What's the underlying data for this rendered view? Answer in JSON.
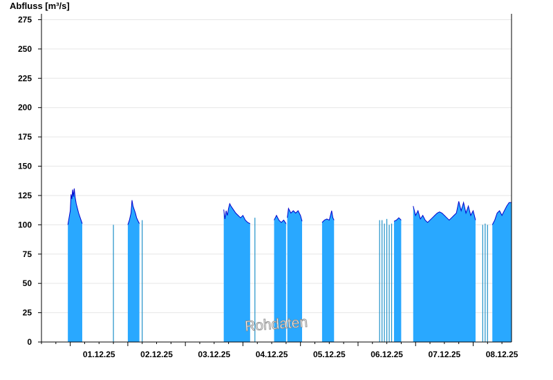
{
  "chart_data": {
    "type": "area",
    "ylabel": "Abfluss [m³/s]",
    "ylim": [
      0,
      280
    ],
    "yticks": [
      0,
      25,
      50,
      75,
      100,
      125,
      150,
      175,
      200,
      225,
      250,
      275
    ],
    "x_range": [
      "2025-11-30T12:00",
      "2025-12-08T16:00"
    ],
    "x_tick_labels": [
      "01.12.25",
      "02.12.25",
      "03.12.25",
      "04.12.25",
      "05.12.25",
      "06.12.25",
      "07.12.25",
      "08.12.25"
    ],
    "grid": true,
    "watermark": "Rohdaten",
    "colors": {
      "fill": "#29a8ff",
      "line": "#0000cc",
      "grid": "#e6e6e6"
    },
    "segments": [
      {
        "points": [
          [
            "2025-11-30T23:00",
            100
          ],
          [
            "2025-11-30T23:30",
            106
          ],
          [
            "2025-12-01T00:00",
            112
          ],
          [
            "2025-12-01T00:20",
            126
          ],
          [
            "2025-12-01T00:40",
            122
          ],
          [
            "2025-12-01T01:00",
            130
          ],
          [
            "2025-12-01T01:20",
            124
          ],
          [
            "2025-12-01T01:40",
            131
          ],
          [
            "2025-12-01T02:00",
            124
          ],
          [
            "2025-12-01T02:30",
            118
          ],
          [
            "2025-12-01T03:00",
            114
          ],
          [
            "2025-12-01T03:30",
            110
          ],
          [
            "2025-12-01T04:00",
            107
          ],
          [
            "2025-12-01T04:30",
            104
          ],
          [
            "2025-12-01T05:00",
            101
          ]
        ]
      },
      {
        "points": [
          [
            "2025-12-01T18:00",
            100
          ]
        ]
      },
      {
        "points": [
          [
            "2025-12-02T00:00",
            100
          ],
          [
            "2025-12-02T00:40",
            104
          ],
          [
            "2025-12-02T01:20",
            110
          ],
          [
            "2025-12-02T01:45",
            121
          ],
          [
            "2025-12-02T02:10",
            116
          ],
          [
            "2025-12-02T02:40",
            113
          ],
          [
            "2025-12-02T03:10",
            110
          ],
          [
            "2025-12-02T03:40",
            106
          ],
          [
            "2025-12-02T04:20",
            103
          ],
          [
            "2025-12-02T04:50",
            101
          ]
        ]
      },
      {
        "points": [
          [
            "2025-12-02T06:00",
            104
          ]
        ]
      },
      {
        "points": [
          [
            "2025-12-03T16:00",
            113
          ],
          [
            "2025-12-03T16:30",
            105
          ],
          [
            "2025-12-03T17:00",
            112
          ],
          [
            "2025-12-03T17:30",
            108
          ],
          [
            "2025-12-03T18:00",
            114
          ],
          [
            "2025-12-03T18:30",
            118
          ],
          [
            "2025-12-03T19:00",
            116
          ],
          [
            "2025-12-03T20:00",
            113
          ],
          [
            "2025-12-03T21:00",
            110
          ],
          [
            "2025-12-03T22:00",
            108
          ],
          [
            "2025-12-03T23:00",
            106
          ],
          [
            "2025-12-04T00:00",
            108
          ],
          [
            "2025-12-04T01:00",
            104
          ],
          [
            "2025-12-04T02:00",
            102
          ],
          [
            "2025-12-04T03:00",
            101
          ]
        ]
      },
      {
        "points": [
          [
            "2025-12-04T05:00",
            106
          ]
        ]
      },
      {
        "points": [
          [
            "2025-12-04T13:00",
            104
          ],
          [
            "2025-12-04T14:00",
            108
          ],
          [
            "2025-12-04T15:00",
            104
          ],
          [
            "2025-12-04T16:00",
            102
          ],
          [
            "2025-12-04T17:00",
            104
          ],
          [
            "2025-12-04T18:00",
            101
          ]
        ]
      },
      {
        "points": [
          [
            "2025-12-04T18:30",
            106
          ],
          [
            "2025-12-04T19:00",
            114
          ],
          [
            "2025-12-04T20:00",
            110
          ],
          [
            "2025-12-04T21:00",
            112
          ],
          [
            "2025-12-04T22:00",
            110
          ],
          [
            "2025-12-04T23:00",
            112
          ],
          [
            "2025-12-05T00:00",
            108
          ],
          [
            "2025-12-05T00:40",
            103
          ]
        ]
      },
      {
        "points": [
          [
            "2025-12-05T09:00",
            102
          ],
          [
            "2025-12-05T10:00",
            104
          ],
          [
            "2025-12-05T11:00",
            105
          ],
          [
            "2025-12-05T12:00",
            104
          ],
          [
            "2025-12-05T13:00",
            112
          ],
          [
            "2025-12-05T13:30",
            106
          ],
          [
            "2025-12-05T14:00",
            104
          ]
        ]
      },
      {
        "points": [
          [
            "2025-12-06T09:00",
            104
          ]
        ]
      },
      {
        "points": [
          [
            "2025-12-06T10:00",
            104
          ]
        ]
      },
      {
        "points": [
          [
            "2025-12-06T11:00",
            101
          ]
        ]
      },
      {
        "points": [
          [
            "2025-12-06T12:00",
            105
          ]
        ]
      },
      {
        "points": [
          [
            "2025-12-06T13:00",
            100
          ]
        ]
      },
      {
        "points": [
          [
            "2025-12-06T14:00",
            101
          ]
        ]
      },
      {
        "points": [
          [
            "2025-12-06T15:00",
            103
          ],
          [
            "2025-12-06T16:00",
            104
          ],
          [
            "2025-12-06T17:00",
            106
          ],
          [
            "2025-12-06T18:00",
            104
          ]
        ]
      },
      {
        "points": [
          [
            "2025-12-06T23:00",
            116
          ],
          [
            "2025-12-07T00:00",
            108
          ],
          [
            "2025-12-07T01:00",
            112
          ],
          [
            "2025-12-07T02:00",
            105
          ],
          [
            "2025-12-07T03:00",
            108
          ],
          [
            "2025-12-07T04:00",
            104
          ],
          [
            "2025-12-07T05:00",
            102
          ],
          [
            "2025-12-07T06:00",
            104
          ],
          [
            "2025-12-07T07:00",
            106
          ],
          [
            "2025-12-07T08:00",
            108
          ],
          [
            "2025-12-07T09:00",
            110
          ],
          [
            "2025-12-07T10:00",
            111
          ],
          [
            "2025-12-07T11:00",
            110
          ],
          [
            "2025-12-07T12:00",
            108
          ],
          [
            "2025-12-07T13:00",
            106
          ],
          [
            "2025-12-07T14:00",
            104
          ],
          [
            "2025-12-07T15:00",
            106
          ],
          [
            "2025-12-07T16:00",
            108
          ],
          [
            "2025-12-07T17:00",
            110
          ],
          [
            "2025-12-07T18:00",
            120
          ],
          [
            "2025-12-07T19:00",
            112
          ],
          [
            "2025-12-07T20:00",
            119
          ],
          [
            "2025-12-07T21:00",
            110
          ],
          [
            "2025-12-07T22:00",
            116
          ],
          [
            "2025-12-07T23:00",
            108
          ],
          [
            "2025-12-08T00:00",
            112
          ],
          [
            "2025-12-08T01:00",
            104
          ]
        ]
      },
      {
        "points": [
          [
            "2025-12-08T04:00",
            100
          ]
        ]
      },
      {
        "points": [
          [
            "2025-12-08T05:00",
            101
          ]
        ]
      },
      {
        "points": [
          [
            "2025-12-08T06:00",
            100
          ]
        ]
      },
      {
        "points": [
          [
            "2025-12-08T08:00",
            100
          ],
          [
            "2025-12-08T09:00",
            104
          ],
          [
            "2025-12-08T10:00",
            110
          ],
          [
            "2025-12-08T11:00",
            112
          ],
          [
            "2025-12-08T12:00",
            108
          ],
          [
            "2025-12-08T13:00",
            112
          ],
          [
            "2025-12-08T14:00",
            116
          ],
          [
            "2025-12-08T15:00",
            119
          ],
          [
            "2025-12-08T16:00",
            119
          ]
        ]
      }
    ]
  }
}
